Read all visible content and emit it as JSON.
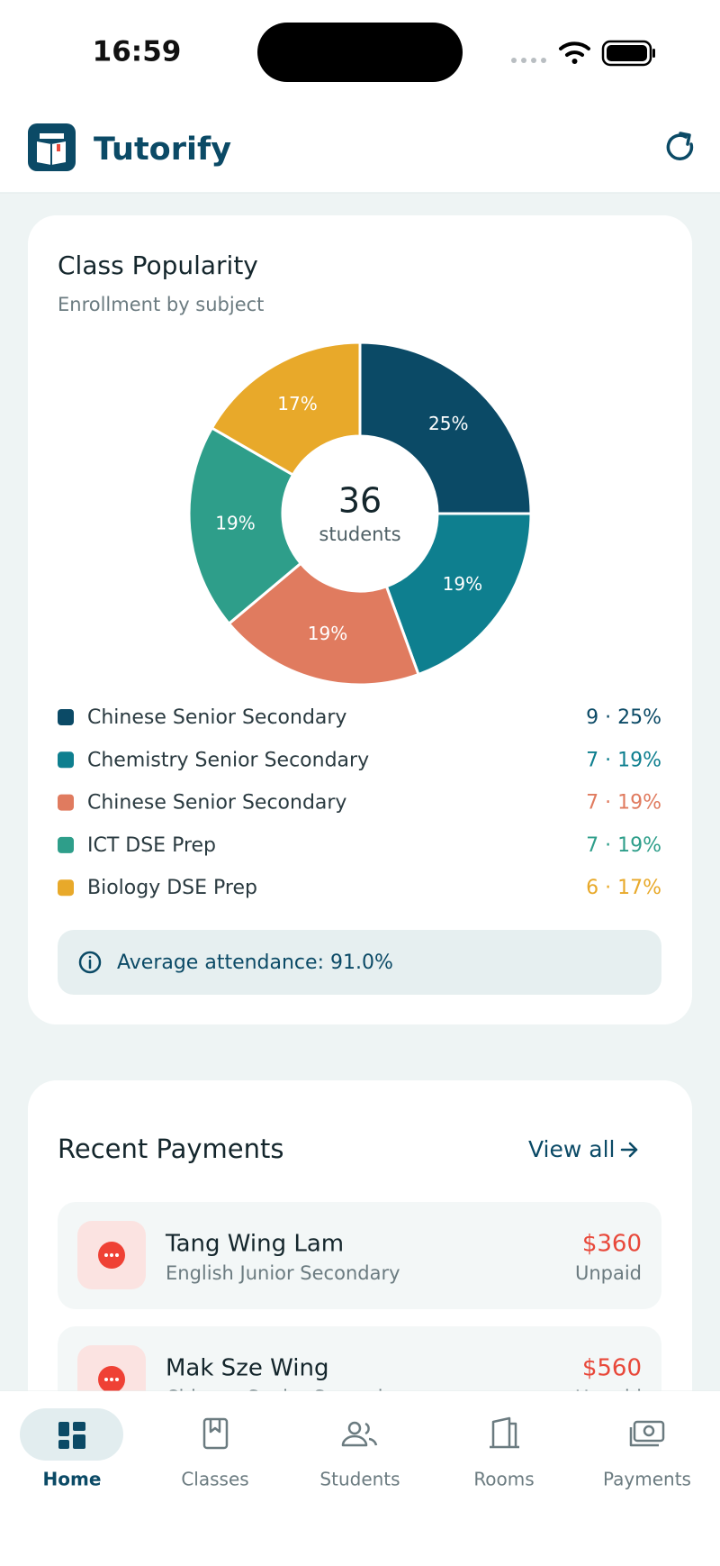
{
  "status_bar": {
    "time": "16:59"
  },
  "header": {
    "app_name": "Tutorify"
  },
  "popularity": {
    "title": "Class Popularity",
    "subtitle": "Enrollment by subject",
    "total": 36,
    "total_label": "students",
    "classes": [
      {
        "name": "Chinese Senior Secondary",
        "color": "#0b4a66",
        "count": 9,
        "percent_label": "25%",
        "label": "9 · 25%"
      },
      {
        "name": "Chemistry Senior Secondary",
        "color": "#0e7f8f",
        "count": 7,
        "percent_label": "19%",
        "label": "7 · 19%"
      },
      {
        "name": "Chinese Senior Secondary",
        "color": "#e07b5f",
        "count": 7,
        "percent_label": "19%",
        "label": "7 · 19%"
      },
      {
        "name": "ICT DSE Prep",
        "color": "#2e9e8a",
        "count": 7,
        "percent_label": "19%",
        "label": "7 · 19%"
      },
      {
        "name": "Biology DSE Prep",
        "color": "#e8a92a",
        "count": 6,
        "percent_label": "17%",
        "label": "6 · 17%"
      }
    ],
    "attendance": "Average attendance: 91.0%"
  },
  "payments": {
    "title": "Recent Payments",
    "view_all": "View all",
    "items": [
      {
        "name": "Tang Wing Lam",
        "subject": "English Junior Secondary",
        "amount": "$360",
        "status": "Unpaid"
      },
      {
        "name": "Mak Sze Wing",
        "subject": "Chinese Senior Secondary",
        "amount": "$560",
        "status": "Unpaid"
      }
    ]
  },
  "nav": [
    "Home",
    "Classes",
    "Students",
    "Rooms",
    "Payments"
  ]
}
